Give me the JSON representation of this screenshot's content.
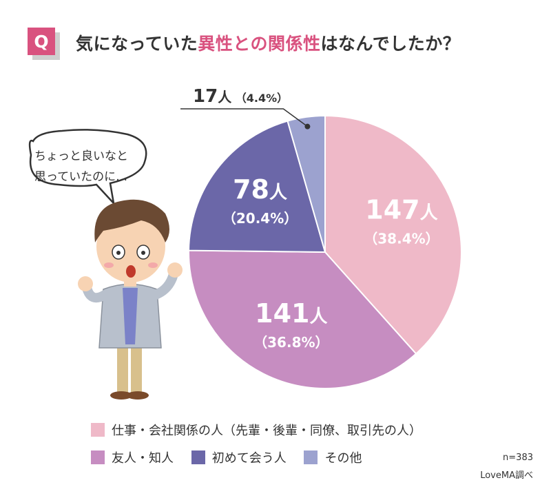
{
  "header": {
    "badge": "Q",
    "title_pre": "気になっていた",
    "title_hl": "異性との関係性",
    "title_post": "はなんでしたか？"
  },
  "speech": {
    "line1": "ちょっと良いなと",
    "line2": "思っていたのに…"
  },
  "chart_data": {
    "type": "pie",
    "total": 383,
    "slices": [
      {
        "name": "仕事・会社関係の人（先輩・後輩・同僚、取引先の人）",
        "count": 147,
        "count_label": "147",
        "percent": 38.4,
        "percent_label": "（38.4%）",
        "color": "#efb9c8"
      },
      {
        "name": "友人・知人",
        "count": 141,
        "count_label": "141",
        "percent": 36.8,
        "percent_label": "（36.8%）",
        "color": "#c68dc1"
      },
      {
        "name": "初めて会う人",
        "count": 78,
        "count_label": "78",
        "percent": 20.4,
        "percent_label": "（20.4%）",
        "color": "#6b67a8"
      },
      {
        "name": "その他",
        "count": 17,
        "count_label": "17",
        "percent": 4.4,
        "percent_label": "（4.4%）",
        "color": "#9ca2cf"
      }
    ],
    "unit": "人"
  },
  "legend": {
    "items": [
      {
        "label": "仕事・会社関係の人（先輩・後輩・同僚、取引先の人）",
        "color": "#efb9c8"
      },
      {
        "label": "友人・知人",
        "color": "#c68dc1"
      },
      {
        "label": "初めて会う人",
        "color": "#6b67a8"
      },
      {
        "label": "その他",
        "color": "#9ca2cf"
      }
    ]
  },
  "footer": {
    "sample": "n=383",
    "source": "LoveMA調べ"
  }
}
